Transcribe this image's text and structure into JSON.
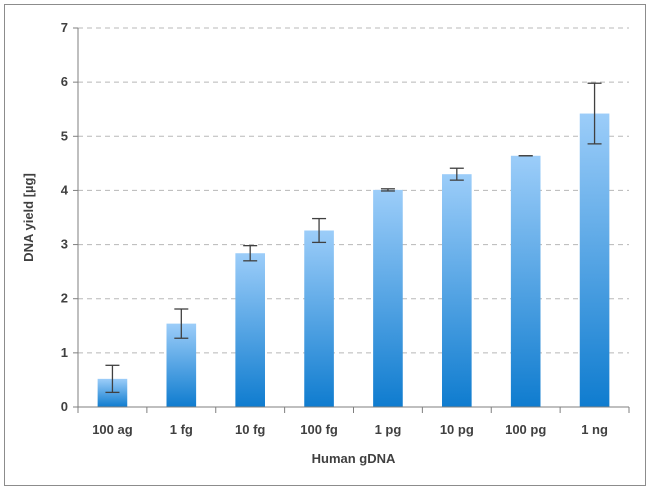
{
  "chart_data": {
    "type": "bar",
    "title": "",
    "xlabel": "Human gDNA",
    "ylabel": "DNA yield [µg]",
    "categories": [
      "100 ag",
      "1 fg",
      "10 fg",
      "100 fg",
      "1 pg",
      "10 pg",
      "100 pg",
      "1 ng"
    ],
    "values": [
      0.52,
      1.54,
      2.84,
      3.26,
      4.01,
      4.3,
      4.64,
      5.42
    ],
    "error": [
      0.25,
      0.27,
      0.14,
      0.22,
      0.02,
      0.11,
      0.0,
      0.56
    ],
    "ylim": [
      0,
      7
    ],
    "yticks": [
      "0",
      "1",
      "2",
      "3",
      "4",
      "5",
      "6",
      "7"
    ],
    "grid": true,
    "legend": "none",
    "colors": {
      "bar_top": "#9ccdf9",
      "bar_bottom": "#0f7ccf",
      "grid": "#b8b8b8",
      "axis": "#7f7f7f",
      "error": "#404040"
    }
  }
}
